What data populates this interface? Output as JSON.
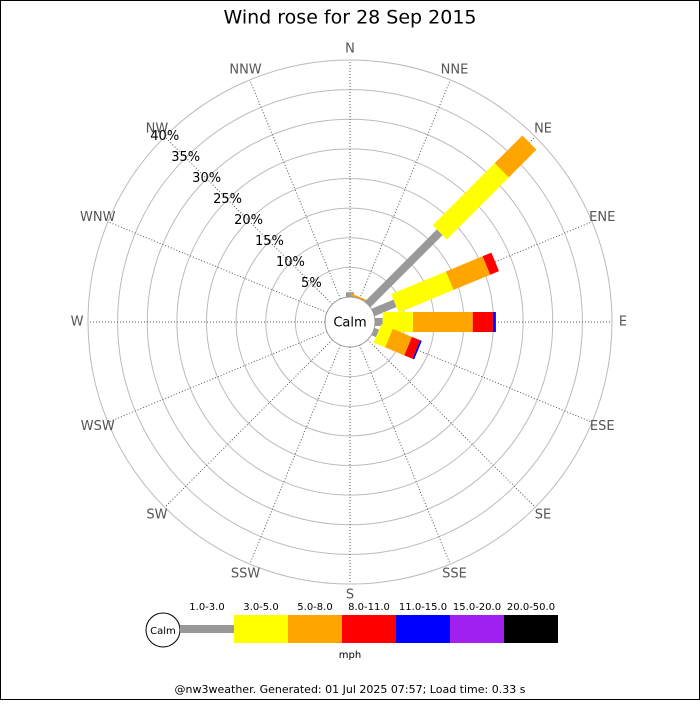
{
  "chart_data": {
    "type": "wind-rose",
    "title": "Wind rose for 28 Sep 2015",
    "categories": [
      "N",
      "NNE",
      "NE",
      "ENE",
      "E",
      "ESE",
      "SE",
      "SSE",
      "S",
      "SSW",
      "SW",
      "WSW",
      "W",
      "WNW",
      "NW",
      "NNW"
    ],
    "center_label": "Calm",
    "series": [
      {
        "name": "1.0-3.0",
        "color": "#999999",
        "values": [
          0.8,
          0,
          17.2,
          4,
          1.3,
          0.8,
          0,
          0,
          0,
          0,
          0,
          0,
          0,
          0,
          0,
          0
        ]
      },
      {
        "name": "3.0-5.0",
        "color": "#ffff00",
        "values": [
          0,
          0,
          14.8,
          10,
          5.1,
          2.1,
          0,
          0,
          0,
          0,
          0,
          0,
          0,
          0,
          0,
          0
        ]
      },
      {
        "name": "5.0-8.0",
        "color": "#ffa500",
        "values": [
          0,
          0.3,
          6.6,
          6.7,
          10.1,
          3.5,
          0,
          0,
          0,
          0,
          0,
          0,
          0,
          0,
          0,
          0
        ]
      },
      {
        "name": "8.0-11.0",
        "color": "#ff0000",
        "values": [
          0,
          0,
          0,
          1.6,
          3.4,
          1.5,
          0,
          0,
          0,
          0,
          0,
          0,
          0,
          0,
          0,
          0
        ]
      },
      {
        "name": "11.0-15.0",
        "color": "#0000ff",
        "values": [
          0,
          0,
          0,
          0,
          0.5,
          0.3,
          0,
          0,
          0,
          0,
          0,
          0,
          0,
          0,
          0,
          0
        ]
      },
      {
        "name": "15.0-20.0",
        "color": "#a020f0",
        "values": [
          0,
          0,
          0,
          0,
          0,
          0,
          0,
          0,
          0,
          0,
          0,
          0,
          0,
          0,
          0,
          0
        ]
      },
      {
        "name": "20.0-50.0",
        "color": "#000000",
        "values": [
          0,
          0,
          0,
          0,
          0,
          0,
          0,
          0,
          0,
          0,
          0,
          0,
          0,
          0,
          0,
          0
        ]
      }
    ],
    "ylim": [
      0,
      40
    ],
    "yticks": [
      {
        "value": 5,
        "label": "5%"
      },
      {
        "value": 10,
        "label": "10%"
      },
      {
        "value": 15,
        "label": "15%"
      },
      {
        "value": 20,
        "label": "20%"
      },
      {
        "value": 25,
        "label": "25%"
      },
      {
        "value": 30,
        "label": "30%"
      },
      {
        "value": 35,
        "label": "35%"
      },
      {
        "value": 40,
        "label": "40%"
      }
    ],
    "legend_unit": "mph",
    "footer": "@nw3weather. Generated: 01 Jul 2025 07:57; Load time: 0.33 s"
  }
}
